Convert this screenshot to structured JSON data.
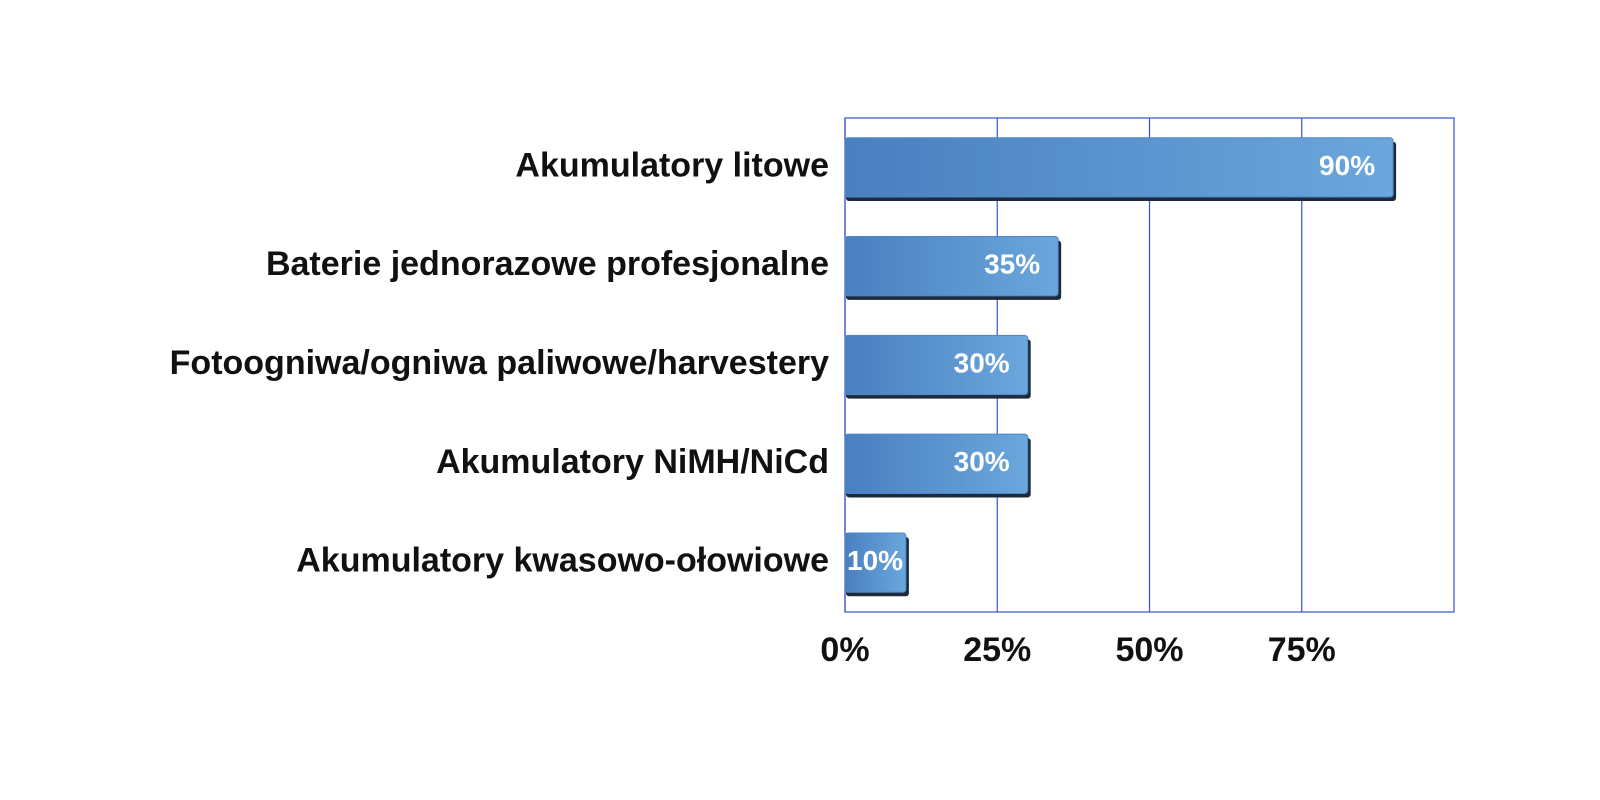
{
  "chart_data": {
    "type": "bar",
    "orientation": "horizontal",
    "categories": [
      "Akumulatory litowe",
      "Baterie jednorazowe profesjonalne",
      "Fotoogniwa/ogniwa paliwowe/harvestery",
      "Akumulatory NiMH/NiCd",
      "Akumulatory kwasowo-ołowiowe"
    ],
    "values": [
      90,
      35,
      30,
      30,
      10
    ],
    "value_labels": [
      "90%",
      "35%",
      "30%",
      "30%",
      "10%"
    ],
    "color": "#4f86c6",
    "xlim": [
      0,
      100
    ],
    "xticks": [
      {
        "value": 0,
        "label": "0%"
      },
      {
        "value": 25,
        "label": "25%"
      },
      {
        "value": 50,
        "label": "50%"
      },
      {
        "value": 75,
        "label": "75%"
      }
    ],
    "grid": true
  }
}
